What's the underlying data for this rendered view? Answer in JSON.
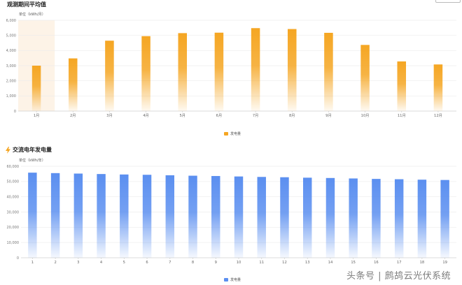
{
  "panel1": {
    "title": "观测期间平均值",
    "unit_label": "单位（kWh/月）",
    "legend_label": "发电量"
  },
  "panel2": {
    "title": "交流电年发电量",
    "unit_label": "单位（kWh/年）",
    "legend_label": "发电量"
  },
  "watermark": "头条号 | 鹧鸪云光伏系统",
  "colors": {
    "monthly_bar": "#f5a623",
    "yearly_bar": "#5b8ff0",
    "highlight_band": "#fdf3e7"
  },
  "chart_data": [
    {
      "type": "bar",
      "categories": [
        "1月",
        "2月",
        "3月",
        "4月",
        "5月",
        "6月",
        "7月",
        "8月",
        "9月",
        "10月",
        "11月",
        "12月"
      ],
      "series": [
        {
          "name": "发电量",
          "values": [
            3000,
            3480,
            4650,
            4950,
            5150,
            5180,
            5480,
            5420,
            5170,
            4370,
            3280,
            3080
          ]
        }
      ],
      "ylim": [
        0,
        6000
      ],
      "yticks": [
        "0",
        "1,000",
        "2,000",
        "3,000",
        "4,000",
        "5,000",
        "6,000"
      ],
      "grid": true,
      "legend_position": "bottom-center"
    },
    {
      "type": "bar",
      "categories": [
        "1",
        "2",
        "3",
        "4",
        "5",
        "6",
        "7",
        "8",
        "9",
        "10",
        "11",
        "12",
        "13",
        "14",
        "15",
        "16",
        "17",
        "18",
        "19"
      ],
      "series": [
        {
          "name": "发电量",
          "values": [
            55800,
            55500,
            55200,
            54900,
            54600,
            54400,
            54100,
            53800,
            53600,
            53300,
            53000,
            52800,
            52500,
            52300,
            52000,
            51700,
            51500,
            51200,
            51000
          ]
        }
      ],
      "ylim": [
        0,
        60000
      ],
      "yticks": [
        "0",
        "10,000",
        "20,000",
        "30,000",
        "40,000",
        "50,000",
        "60,000"
      ],
      "grid": true,
      "legend_position": "bottom-center"
    }
  ]
}
